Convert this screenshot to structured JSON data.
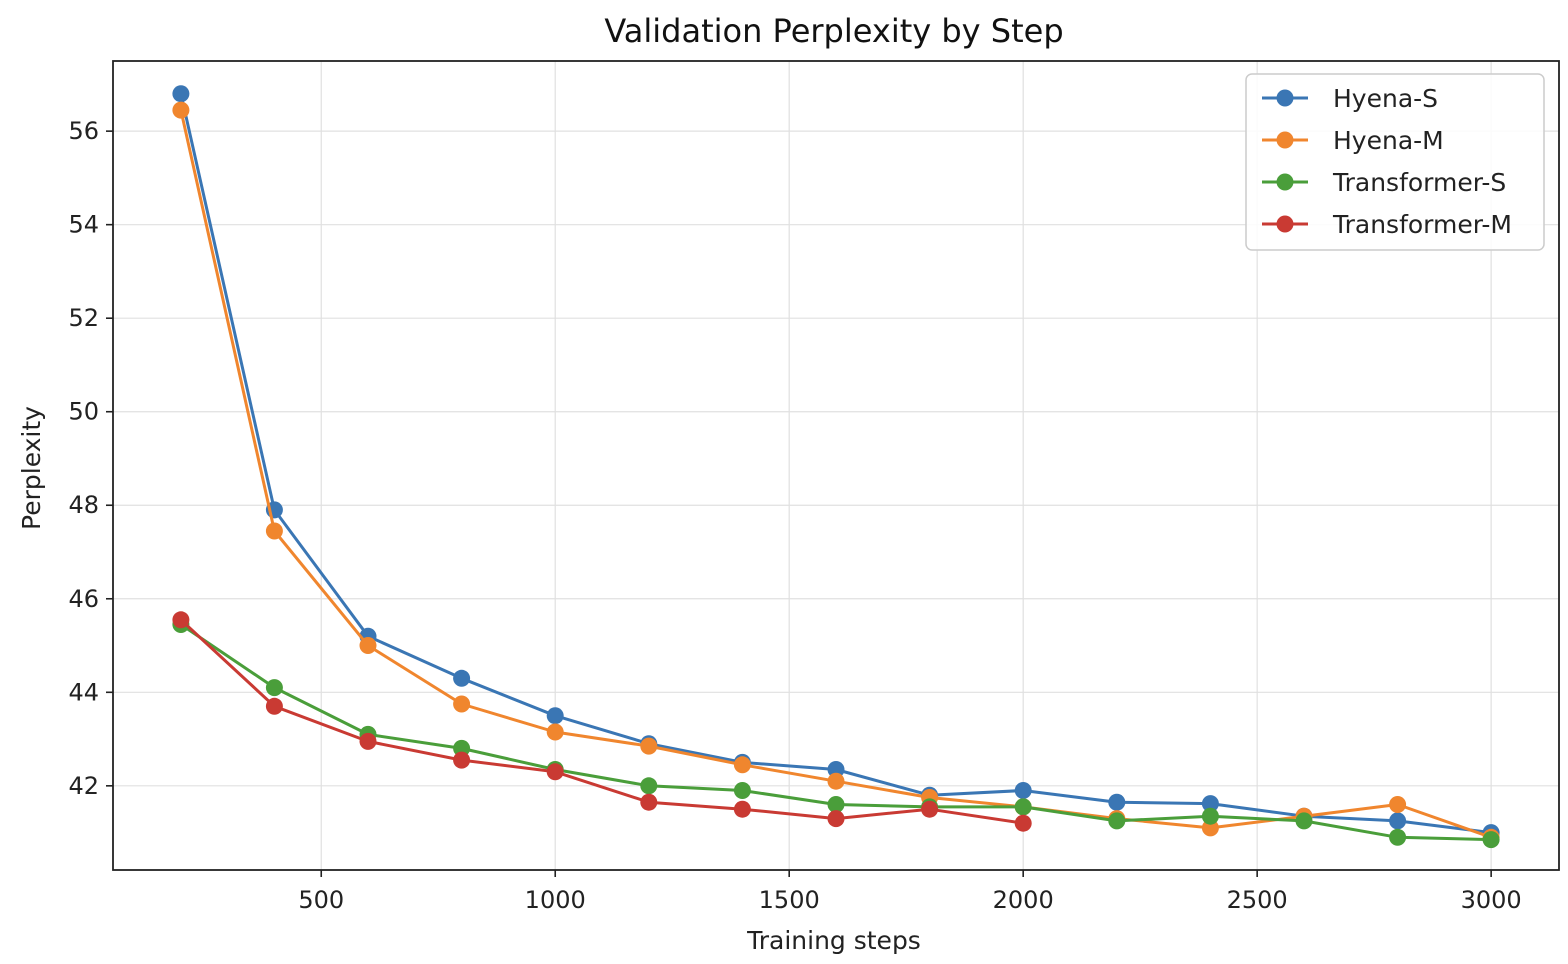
{
  "chart_data": {
    "type": "line",
    "title": "Validation Perplexity by Step",
    "xlabel": "Training steps",
    "ylabel": "Perplexity",
    "xlim": [
      55,
      3145
    ],
    "ylim": [
      40.2,
      57.5
    ],
    "xticks": [
      500,
      1000,
      1500,
      2000,
      2500,
      3000
    ],
    "yticks": [
      42,
      44,
      46,
      48,
      50,
      52,
      54,
      56
    ],
    "grid": true,
    "legend_position": "top-right",
    "x": [
      200,
      400,
      600,
      800,
      1000,
      1200,
      1400,
      1600,
      1800,
      2000,
      2200,
      2400,
      2600,
      2800,
      3000
    ],
    "series": [
      {
        "name": "Hyena-S",
        "color": "#3a76b4",
        "values": [
          56.8,
          47.9,
          45.2,
          44.3,
          43.5,
          42.9,
          42.5,
          42.35,
          41.8,
          41.9,
          41.65,
          41.62,
          41.35,
          41.25,
          41.0
        ]
      },
      {
        "name": "Hyena-M",
        "color": "#f0862e",
        "values": [
          56.45,
          47.45,
          45.0,
          43.75,
          43.15,
          42.85,
          42.45,
          42.1,
          41.75,
          41.55,
          41.3,
          41.1,
          41.35,
          41.6,
          40.9
        ]
      },
      {
        "name": "Transformer-S",
        "color": "#4a9e3a",
        "values": [
          45.45,
          44.1,
          43.1,
          42.8,
          42.35,
          42.0,
          41.9,
          41.6,
          41.55,
          41.55,
          41.25,
          41.35,
          41.25,
          40.9,
          40.85
        ]
      },
      {
        "name": "Transformer-M",
        "color": "#c93a33",
        "values": [
          45.55,
          43.7,
          42.95,
          42.55,
          42.3,
          41.65,
          41.5,
          41.3,
          41.5,
          41.2,
          null,
          null,
          null,
          null,
          null
        ]
      }
    ]
  }
}
